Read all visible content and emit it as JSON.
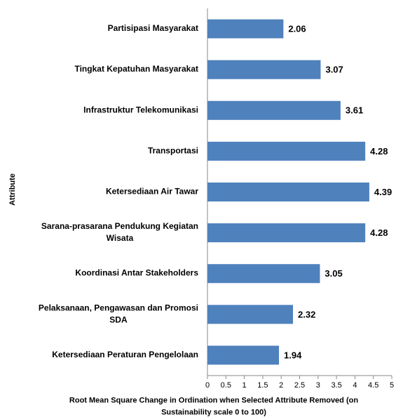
{
  "chart_data": {
    "type": "bar",
    "orientation": "horizontal",
    "categories": [
      "Partisipasi Masyarakat",
      "Tingkat Kepatuhan Masyarakat",
      "Infrastruktur Telekomunikasi",
      "Transportasi",
      "Ketersediaan Air Tawar",
      "Sarana-prasarana Pendukung Kegiatan Wisata",
      "Koordinasi Antar Stakeholders",
      "Pelaksanaan, Pengawasan dan Promosi SDA",
      "Ketersediaan Peraturan Pengelolaan"
    ],
    "values": [
      2.06,
      3.07,
      3.61,
      4.28,
      4.39,
      4.28,
      3.05,
      2.32,
      1.94
    ],
    "color": "#4f81bd",
    "xlabel": "Root Mean Square Change in Ordination when Selected Attribute Removed (on Sustainability scale 0 to 100)",
    "ylabel": "Attribute",
    "xlim": [
      0,
      5
    ],
    "xticks": [
      0,
      0.5,
      1,
      1.5,
      2,
      2.5,
      3,
      3.5,
      4,
      4.5,
      5
    ],
    "grid": false
  }
}
